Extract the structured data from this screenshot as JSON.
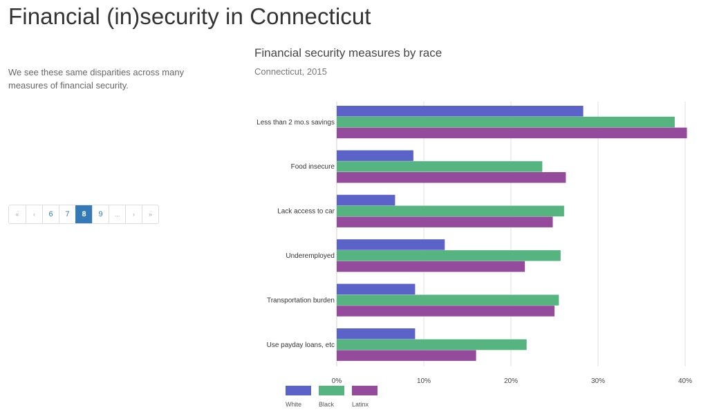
{
  "page": {
    "title": "Financial (in)security in Connecticut",
    "intro": "We see these same disparities across many measures of financial security."
  },
  "pagination": {
    "items": [
      {
        "label": "«",
        "kind": "first"
      },
      {
        "label": "‹",
        "kind": "prev"
      },
      {
        "label": "6",
        "kind": "page"
      },
      {
        "label": "7",
        "kind": "page"
      },
      {
        "label": "8",
        "kind": "page",
        "active": true
      },
      {
        "label": "9",
        "kind": "page"
      },
      {
        "label": "...",
        "kind": "ellipsis"
      },
      {
        "label": "›",
        "kind": "next"
      },
      {
        "label": "»",
        "kind": "last"
      }
    ],
    "active_color": "#337ab7"
  },
  "chart_data": {
    "type": "bar",
    "orientation": "horizontal",
    "title": "Financial security measures by race",
    "subtitle": "Connecticut, 2015",
    "xlabel": "",
    "ylabel": "",
    "categories": [
      "Less than 2 mo.s savings",
      "Food insecure",
      "Lack access to car",
      "Underemployed",
      "Transportation burden",
      "Use payday loans, etc"
    ],
    "series": [
      {
        "name": "White",
        "color": "#5b63c9",
        "values": [
          28.3,
          8.8,
          6.7,
          12.4,
          9.0,
          9.0
        ]
      },
      {
        "name": "Black",
        "color": "#55b47f",
        "values": [
          38.8,
          23.6,
          26.1,
          25.7,
          25.5,
          21.8
        ]
      },
      {
        "name": "Latinx",
        "color": "#944b9b",
        "values": [
          40.2,
          26.3,
          24.8,
          21.6,
          25.0,
          16.0
        ]
      }
    ],
    "xlim": [
      0,
      40
    ],
    "x_ticks": [
      0,
      10,
      20,
      30,
      40
    ],
    "x_tick_labels": [
      "0%",
      "10%",
      "20%",
      "30%",
      "40%"
    ],
    "units": "percent",
    "grid": true,
    "legend": "bottom-left"
  }
}
